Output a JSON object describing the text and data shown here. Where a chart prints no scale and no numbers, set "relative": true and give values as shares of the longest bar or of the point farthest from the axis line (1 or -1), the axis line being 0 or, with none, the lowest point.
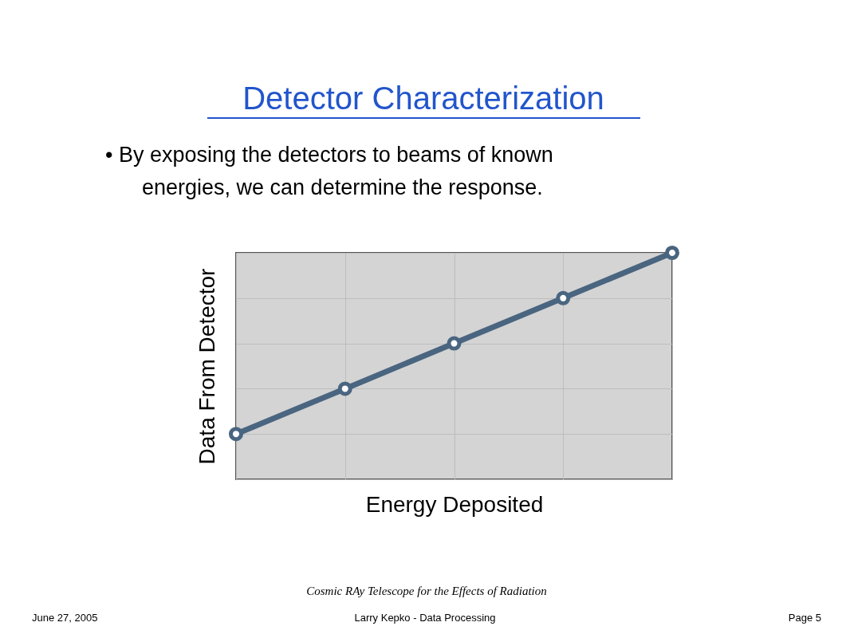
{
  "chart_data": {
    "type": "line",
    "title": "Detector Characterization",
    "subtitle": "•  By exposing the detectors to beams of known energies, we can determine the response.",
    "xlabel": "Energy Deposited",
    "ylabel": "Data From Detector",
    "categories": [
      null,
      null,
      null,
      null,
      null
    ],
    "relative": true,
    "series": [
      {
        "color": "#4a6580",
        "values": [
          0.2,
          0.4,
          0.6,
          0.8,
          1
        ]
      }
    ],
    "marker": "circle",
    "line_style": "solid",
    "grid": true,
    "annotations": [
      "Cosmic RAy Telescope for the Effects of Radiation",
      "June 27, 2005",
      "Larry Kepko - Data Processing",
      "Page 5"
    ]
  }
}
